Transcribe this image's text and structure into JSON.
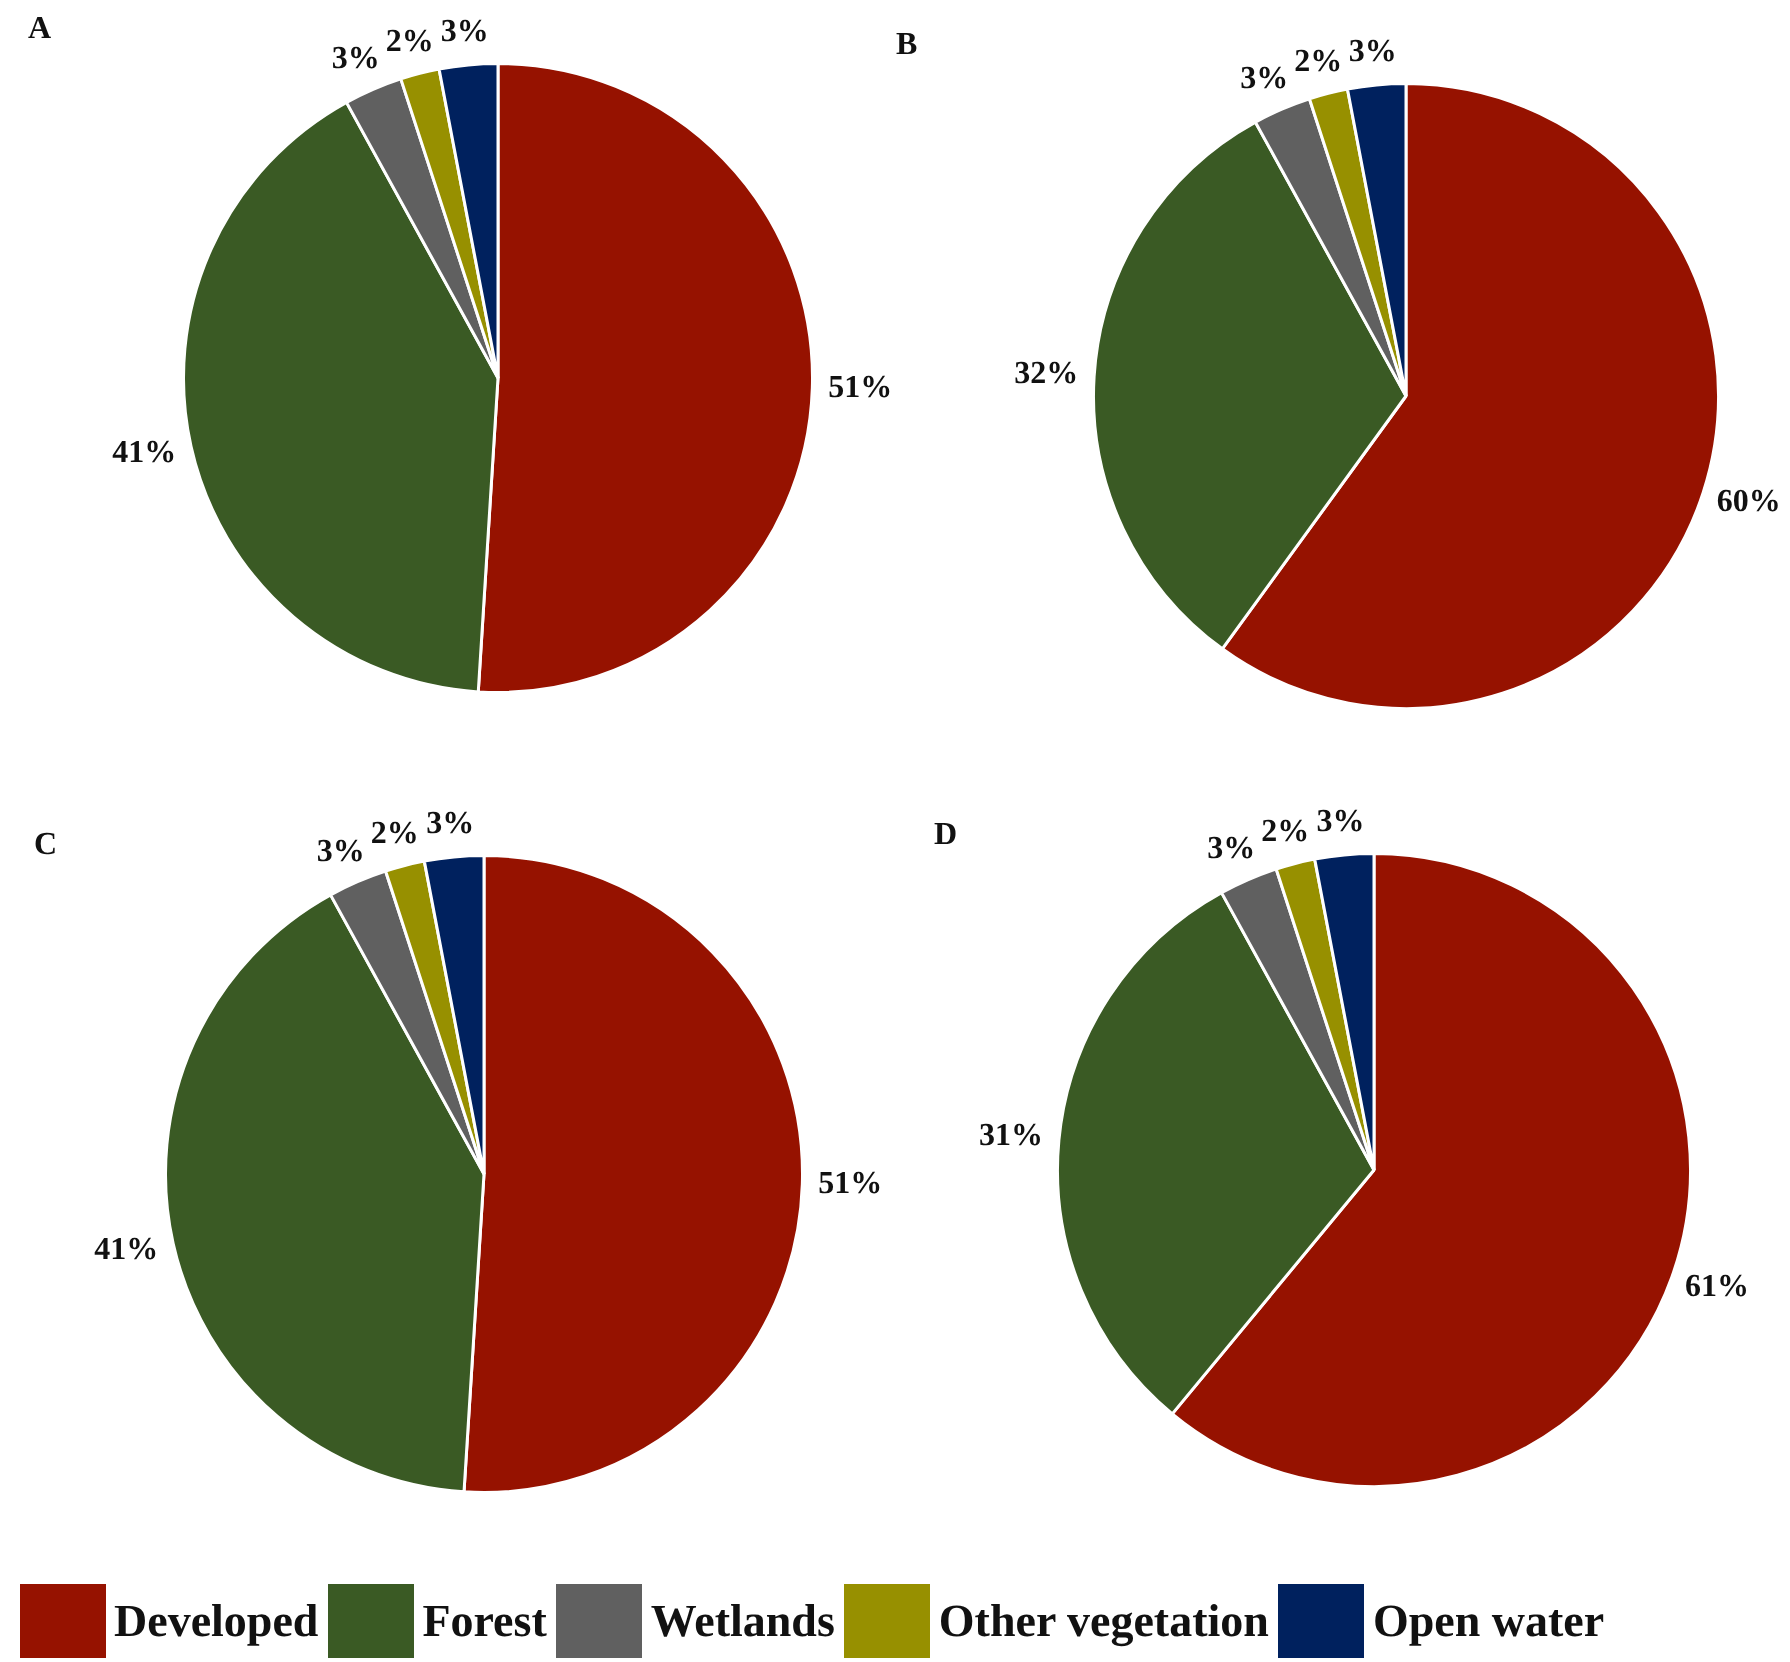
{
  "chart_data": [
    {
      "type": "pie",
      "title": "A",
      "categories": [
        "Developed",
        "Forest",
        "Wetlands",
        "Other vegetation",
        "Open water"
      ],
      "values": [
        51,
        41,
        3,
        2,
        3
      ],
      "colors": [
        "#961200",
        "#3a5a24",
        "#606060",
        "#979000",
        "#00215e"
      ],
      "value_labels": [
        "51%",
        "41%",
        "3%",
        "2%",
        "3%"
      ],
      "legend": "bottom"
    },
    {
      "type": "pie",
      "title": "B",
      "categories": [
        null,
        null,
        null,
        null,
        null
      ],
      "values": [
        60,
        32,
        3,
        2,
        3
      ],
      "colors": [
        "#961200",
        "#3a5a24",
        "#606060",
        "#979000",
        "#00215e"
      ],
      "value_labels": [
        "60%",
        "32%",
        "3%",
        "2%",
        "3%"
      ]
    },
    {
      "type": "pie",
      "title": "C",
      "categories": [
        null,
        null,
        null,
        null,
        null
      ],
      "values": [
        51,
        41,
        3,
        2,
        3
      ],
      "colors": [
        "#961200",
        "#3a5a24",
        "#606060",
        "#979000",
        "#00215e"
      ],
      "value_labels": [
        "51%",
        "41%",
        "3%",
        "2%",
        "3%"
      ]
    },
    {
      "type": "pie",
      "title": "D",
      "categories": [
        null,
        null,
        null,
        null,
        null
      ],
      "values": [
        61,
        31,
        3,
        2,
        3
      ],
      "colors": [
        "#961200",
        "#3a5a24",
        "#606060",
        "#979000",
        "#00215e"
      ],
      "value_labels": [
        "61%",
        "31%",
        "3%",
        "2%",
        "3%"
      ]
    }
  ]
}
